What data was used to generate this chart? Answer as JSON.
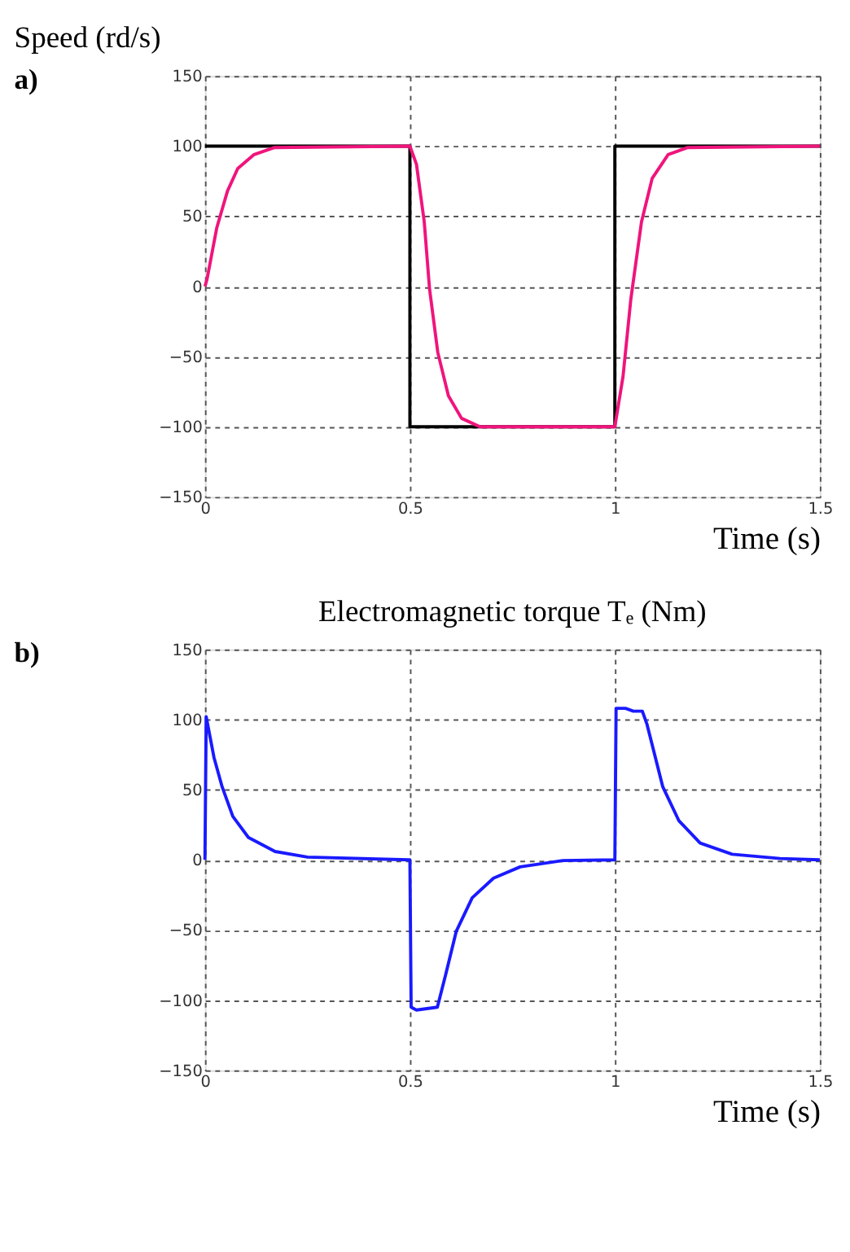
{
  "chart_data": [
    {
      "type": "line",
      "title": "Speed (rd/s)",
      "xlabel": "Time (s)",
      "annotations": [
        "a)"
      ],
      "xlim": [
        0,
        1.5
      ],
      "xticks": [
        0,
        0.5,
        1,
        1.5
      ],
      "ylim": [
        -150,
        150
      ],
      "yticks": [
        -150,
        -100,
        -50,
        0,
        50,
        100,
        150
      ],
      "grid": true,
      "line_style": "solid",
      "series": [
        {
          "color": "#000000",
          "x": [
            0,
            0.5,
            0.5,
            1,
            1,
            1.5
          ],
          "values": [
            100,
            100,
            -100,
            -100,
            100,
            100
          ]
        },
        {
          "color": "#f0147c",
          "x": [
            0,
            0.005,
            0.016,
            0.029,
            0.055,
            0.08,
            0.12,
            0.17,
            0.5,
            0.516,
            0.535,
            0.548,
            0.568,
            0.594,
            0.626,
            0.671,
            1.0,
            1.02,
            1.039,
            1.065,
            1.091,
            1.13,
            1.178,
            1.5
          ],
          "values": [
            0,
            5,
            22,
            42,
            68,
            84,
            94,
            99,
            100,
            87,
            46,
            -2,
            -47,
            -78,
            -94,
            -100,
            -100,
            -64,
            -9,
            46,
            77,
            94,
            99,
            100
          ]
        }
      ]
    },
    {
      "type": "line",
      "title": "Electromagnetic torque Tₑ (Nm)",
      "xlabel": "Time (s)",
      "annotations": [
        "b)"
      ],
      "xlim": [
        0,
        1.5
      ],
      "xticks": [
        0,
        0.5,
        1,
        1.5
      ],
      "ylim": [
        -150,
        150
      ],
      "yticks": [
        -150,
        -100,
        -50,
        0,
        50,
        100,
        150
      ],
      "grid": true,
      "line_style": "solid",
      "series": [
        {
          "color": "#1a1aff",
          "x": [
            0,
            0.003,
            0.022,
            0.042,
            0.068,
            0.106,
            0.171,
            0.25,
            0.497,
            0.5,
            0.503,
            0.516,
            0.567,
            0.587,
            0.613,
            0.652,
            0.704,
            0.769,
            0.873,
            1.0,
            1.003,
            1.026,
            1.045,
            1.067,
            1.078,
            1.117,
            1.156,
            1.208,
            1.286,
            1.403,
            1.5
          ],
          "values": [
            0,
            102,
            73,
            52,
            31,
            16,
            6,
            2,
            0,
            0,
            -105,
            -107,
            -105,
            -82,
            -51,
            -27,
            -13,
            -5,
            -0.5,
            0,
            108,
            108,
            106,
            106,
            97,
            52,
            28,
            12,
            4,
            1,
            0
          ]
        }
      ]
    }
  ]
}
